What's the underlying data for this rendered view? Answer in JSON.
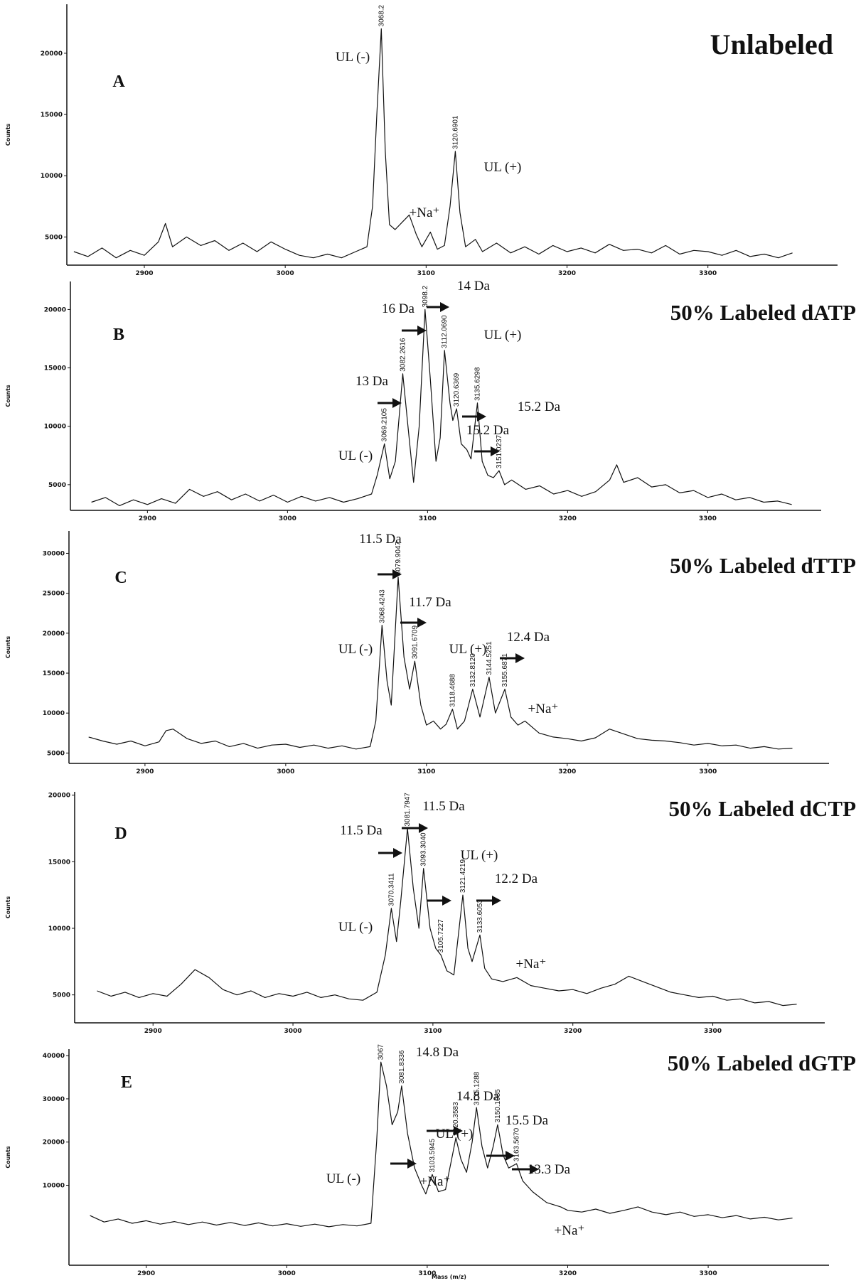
{
  "chart_data": [
    {
      "type": "line",
      "title": "Unlabeled",
      "panel_label": "A",
      "ylabel": "Counts",
      "color": "#111111",
      "xlim": [
        2845,
        3392
      ],
      "xticks": [
        2900,
        3000,
        3100,
        3200,
        3300
      ],
      "ylim": [
        2700,
        24000
      ],
      "yticks": [
        5000,
        10000,
        15000,
        20000
      ],
      "x": [
        2850,
        2860,
        2870,
        2880,
        2890,
        2900,
        2910,
        2915,
        2920,
        2930,
        2940,
        2950,
        2960,
        2970,
        2980,
        2990,
        3000,
        3010,
        3020,
        3030,
        3040,
        3050,
        3058,
        3062,
        3065,
        3068.2,
        3071,
        3074,
        3078,
        3083,
        3088,
        3093,
        3097,
        3103,
        3108,
        3113,
        3117,
        3120.7,
        3124,
        3128,
        3135,
        3140,
        3150,
        3160,
        3170,
        3180,
        3190,
        3200,
        3210,
        3220,
        3230,
        3240,
        3250,
        3260,
        3270,
        3280,
        3290,
        3300,
        3310,
        3320,
        3330,
        3340,
        3350,
        3360
      ],
      "values": [
        3800,
        3400,
        4100,
        3300,
        3900,
        3500,
        4600,
        6100,
        4200,
        5000,
        4300,
        4700,
        3900,
        4500,
        3800,
        4600,
        4000,
        3500,
        3300,
        3600,
        3300,
        3800,
        4200,
        7500,
        15000,
        22000,
        12000,
        6000,
        5600,
        6200,
        6800,
        5200,
        4200,
        5400,
        4000,
        4300,
        7500,
        12000,
        7000,
        4200,
        4800,
        3800,
        4500,
        3700,
        4200,
        3600,
        4300,
        3800,
        4100,
        3700,
        4400,
        3900,
        4000,
        3700,
        4300,
        3600,
        3900,
        3800,
        3500,
        3900,
        3400,
        3600,
        3300,
        3700
      ],
      "peak_labels": [
        {
          "value": 3068.2,
          "label": "3068.2"
        },
        {
          "value": 3120.6901,
          "label": "3120.6901"
        }
      ],
      "annotations": [
        "UL (-)",
        "+Na⁺",
        "UL (+)"
      ]
    },
    {
      "type": "line",
      "title": "50% Labeled dATP",
      "panel_label": "B",
      "ylabel": "Counts",
      "color": "#111111",
      "xlim": [
        2845,
        3381
      ],
      "xticks": [
        2900,
        3000,
        3100,
        3200,
        3300
      ],
      "ylim": [
        2800,
        22400
      ],
      "yticks": [
        5000,
        10000,
        15000,
        20000
      ],
      "x": [
        2860,
        2870,
        2880,
        2890,
        2900,
        2910,
        2920,
        2930,
        2940,
        2950,
        2960,
        2970,
        2980,
        2990,
        3000,
        3010,
        3020,
        3030,
        3040,
        3050,
        3060,
        3064,
        3069.2,
        3073,
        3077,
        3082.3,
        3086,
        3090,
        3094,
        3098.2,
        3102,
        3106,
        3109,
        3112.1,
        3116,
        3118,
        3120.7,
        3124,
        3128,
        3131,
        3135.6,
        3139,
        3143,
        3147,
        3151,
        3155,
        3160,
        3170,
        3180,
        3190,
        3200,
        3210,
        3220,
        3230,
        3235,
        3240,
        3250,
        3260,
        3270,
        3280,
        3290,
        3300,
        3310,
        3320,
        3330,
        3340,
        3350,
        3360
      ],
      "values": [
        3500,
        3900,
        3200,
        3700,
        3300,
        3800,
        3400,
        4600,
        4000,
        4400,
        3700,
        4200,
        3600,
        4100,
        3500,
        4000,
        3600,
        3900,
        3500,
        3800,
        4200,
        5800,
        8500,
        5500,
        7000,
        14500,
        10000,
        5200,
        10000,
        20000,
        14000,
        7000,
        9000,
        16500,
        12000,
        10500,
        11500,
        8500,
        8000,
        7200,
        12000,
        7000,
        5800,
        5600,
        6200,
        5000,
        5400,
        4600,
        4900,
        4200,
        4500,
        4000,
        4400,
        5400,
        6700,
        5200,
        5600,
        4800,
        5000,
        4300,
        4500,
        3900,
        4200,
        3700,
        3900,
        3500,
        3600,
        3300
      ],
      "peak_labels": [
        {
          "value": 3069.2105,
          "label": "3069.2105"
        },
        {
          "value": 3082.2616,
          "label": "3082.2616"
        },
        {
          "value": 3098.2,
          "label": "3098.2"
        },
        {
          "value": 3112.069,
          "label": "3112.0690"
        },
        {
          "value": 3120.6369,
          "label": "3120.6369"
        },
        {
          "value": 3135.6298,
          "label": "3135.6298"
        },
        {
          "value": 3151.0237,
          "label": "3151.0237"
        }
      ],
      "annotations": [
        "14 Da",
        "16 Da",
        "UL (+)",
        "13 Da",
        "15.2 Da",
        "15.2 Da",
        "UL (-)"
      ]
    },
    {
      "type": "line",
      "title": "50% Labeled dTTP",
      "panel_label": "C",
      "ylabel": "Counts",
      "color": "#111111",
      "xlim": [
        2846,
        3386
      ],
      "xticks": [
        2900,
        3000,
        3100,
        3200,
        3300
      ],
      "ylim": [
        3700,
        32800
      ],
      "yticks": [
        5000,
        10000,
        15000,
        20000,
        25000,
        30000
      ],
      "x": [
        2860,
        2870,
        2880,
        2890,
        2900,
        2910,
        2915,
        2920,
        2930,
        2940,
        2950,
        2960,
        2970,
        2980,
        2990,
        3000,
        3010,
        3020,
        3030,
        3040,
        3050,
        3060,
        3064,
        3068.4,
        3072,
        3075,
        3079.9,
        3084,
        3088,
        3091.7,
        3096,
        3100,
        3105,
        3110,
        3114,
        3118.5,
        3122,
        3127,
        3132.8,
        3138,
        3144.5,
        3149,
        3155.7,
        3160,
        3165,
        3170,
        3180,
        3190,
        3200,
        3210,
        3220,
        3230,
        3240,
        3250,
        3260,
        3270,
        3280,
        3290,
        3300,
        3310,
        3320,
        3330,
        3340,
        3350,
        3360
      ],
      "values": [
        7000,
        6500,
        6100,
        6500,
        5900,
        6400,
        7800,
        8000,
        6800,
        6200,
        6500,
        5800,
        6200,
        5600,
        6000,
        6100,
        5700,
        6000,
        5600,
        5900,
        5500,
        5800,
        9000,
        21000,
        14000,
        11000,
        27000,
        17000,
        13000,
        16500,
        11000,
        8500,
        9000,
        8000,
        8600,
        10500,
        8000,
        9000,
        13000,
        9500,
        14500,
        10000,
        13000,
        9500,
        8500,
        9000,
        7500,
        7000,
        6800,
        6500,
        6900,
        8000,
        7400,
        6800,
        6600,
        6500,
        6300,
        6000,
        6200,
        5900,
        6000,
        5600,
        5800,
        5500,
        5600
      ],
      "peak_labels": [
        {
          "value": 3068.4243,
          "label": "3068.4243"
        },
        {
          "value": 3079.9047,
          "label": "3079.9047"
        },
        {
          "value": 3091.6709,
          "label": "3091.6709"
        },
        {
          "value": 3118.4688,
          "label": "3118.4688"
        },
        {
          "value": 3132.812,
          "label": "3132.8120"
        },
        {
          "value": 3144.5251,
          "label": "3144.5251"
        },
        {
          "value": 3155.6871,
          "label": "3155.6871"
        }
      ],
      "annotations": [
        "11.5 Da",
        "11.7 Da",
        "UL (-)",
        "UL (+)",
        "12.4 Da",
        "+Na⁺"
      ]
    },
    {
      "type": "line",
      "title": "50% Labeled dCTP",
      "panel_label": "D",
      "ylabel": "Counts",
      "color": "#111111",
      "xlim": [
        2844,
        3380
      ],
      "xticks": [
        2900,
        3000,
        3100,
        3200,
        3300
      ],
      "ylim": [
        2900,
        20250
      ],
      "yticks": [
        5000,
        10000,
        15000,
        20000
      ],
      "x": [
        2860,
        2870,
        2880,
        2890,
        2900,
        2910,
        2920,
        2930,
        2940,
        2950,
        2960,
        2970,
        2980,
        2990,
        3000,
        3010,
        3020,
        3030,
        3040,
        3050,
        3060,
        3066,
        3070.3,
        3074,
        3077,
        3081.8,
        3086,
        3090,
        3093.3,
        3098,
        3102,
        3105.7,
        3110,
        3115,
        3121.4,
        3125,
        3128,
        3133.6,
        3137,
        3142,
        3150,
        3160,
        3170,
        3180,
        3190,
        3200,
        3210,
        3220,
        3230,
        3240,
        3250,
        3260,
        3270,
        3280,
        3290,
        3300,
        3310,
        3320,
        3330,
        3340,
        3350,
        3360
      ],
      "values": [
        5300,
        4900,
        5200,
        4800,
        5100,
        4900,
        5800,
        6900,
        6300,
        5400,
        5000,
        5300,
        4800,
        5100,
        4900,
        5200,
        4800,
        5000,
        4700,
        4600,
        5200,
        8000,
        11500,
        9000,
        12000,
        17500,
        13000,
        10000,
        14500,
        10000,
        8500,
        8000,
        6800,
        6500,
        12500,
        8500,
        7500,
        9500,
        7000,
        6200,
        6000,
        6300,
        5700,
        5500,
        5300,
        5400,
        5100,
        5500,
        5800,
        6400,
        6000,
        5600,
        5200,
        5000,
        4800,
        4900,
        4600,
        4700,
        4400,
        4500,
        4200,
        4300
      ],
      "peak_labels": [
        {
          "value": 3070.3411,
          "label": "3070.3411"
        },
        {
          "value": 3081.7947,
          "label": "3081.7947"
        },
        {
          "value": 3093.304,
          "label": "3093.3040"
        },
        {
          "value": 3105.7227,
          "label": "3105.7227"
        },
        {
          "value": 3121.4219,
          "label": "3121.4219"
        },
        {
          "value": 3133.6053,
          "label": "3133.6053"
        }
      ],
      "annotations": [
        "11.5 Da",
        "11.5 Da",
        "UL (+)",
        "12.2 Da",
        "UL (-)",
        "+Na⁺"
      ]
    },
    {
      "type": "line",
      "title": "50% Labeled dGTP",
      "panel_label": "E",
      "ylabel": "Counts",
      "xlabel": "Mass (m/z)",
      "color": "#111111",
      "xlim": [
        2845,
        3386
      ],
      "xticks": [
        2900,
        3000,
        3100,
        3200,
        3300
      ],
      "ylim": [
        -8500,
        41500
      ],
      "yticks": [
        10000,
        20000,
        30000,
        40000
      ],
      "x": [
        2860,
        2870,
        2880,
        2890,
        2900,
        2910,
        2920,
        2930,
        2940,
        2950,
        2960,
        2970,
        2980,
        2990,
        3000,
        3010,
        3020,
        3030,
        3040,
        3050,
        3060,
        3064,
        3067,
        3071,
        3075,
        3079,
        3081.8,
        3086,
        3091,
        3096,
        3099,
        3103.6,
        3108,
        3113,
        3118,
        3120.4,
        3124,
        3128,
        3132,
        3135.1,
        3139,
        3143,
        3147,
        3150.1,
        3154,
        3158,
        3163.6,
        3168,
        3175,
        3185,
        3195,
        3200,
        3210,
        3220,
        3230,
        3240,
        3250,
        3260,
        3270,
        3280,
        3290,
        3300,
        3310,
        3320,
        3330,
        3340,
        3350,
        3360
      ],
      "values": [
        3000,
        1500,
        2200,
        1200,
        1800,
        1000,
        1600,
        900,
        1500,
        800,
        1400,
        700,
        1300,
        600,
        1100,
        500,
        1000,
        400,
        900,
        600,
        1200,
        20000,
        38500,
        33000,
        24000,
        27000,
        33000,
        22000,
        14000,
        10000,
        8000,
        12500,
        8500,
        9000,
        17000,
        21000,
        16000,
        13000,
        20000,
        28000,
        19000,
        14000,
        19000,
        24000,
        17000,
        14000,
        15000,
        11000,
        8500,
        6000,
        5000,
        4200,
        3800,
        4500,
        3500,
        4200,
        5000,
        3800,
        3200,
        3800,
        2800,
        3200,
        2500,
        3000,
        2200,
        2600,
        2000,
        2400
      ],
      "peak_labels": [
        {
          "value": 3067,
          "label": "3067"
        },
        {
          "value": 3081.8336,
          "label": "3081.8336"
        },
        {
          "value": 3103.5945,
          "label": "3103.5945"
        },
        {
          "value": 3120.3583,
          "label": "3120.3583"
        },
        {
          "value": 3135.1288,
          "label": "3135.1288"
        },
        {
          "value": 3150.1085,
          "label": "3150.1085"
        },
        {
          "value": 3163.567,
          "label": "3163.5670"
        }
      ],
      "annotations": [
        "14.8 Da",
        "14.8 Da",
        "UL (+)",
        "15.5 Da",
        "UL (-)",
        "+Na⁺",
        "13.3 Da",
        "+Na⁺"
      ]
    }
  ]
}
